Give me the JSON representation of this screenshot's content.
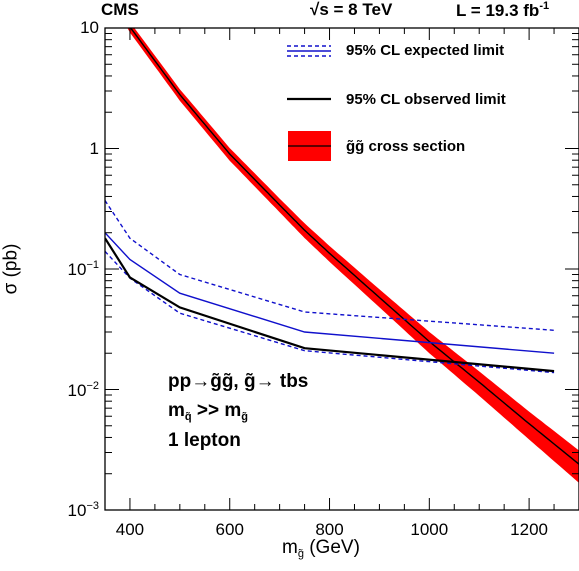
{
  "header": {
    "experiment": "CMS",
    "energy_prefix": "s",
    "energy_value": " = 8 TeV",
    "lumi": "L = 19.3 fb",
    "lumi_sup": "-1"
  },
  "legend": {
    "expected": "95% CL expected limit",
    "observed": "95% CL observed limit",
    "xsec": "g̃g̃ cross section"
  },
  "annotation": {
    "line1": "pp→g̃g̃,  g̃→ tbs",
    "line2_main": "m",
    "line2_sub": "q̃",
    "line2_mid": " >> m",
    "line2_sub2": "g̃",
    "line3": "1 lepton"
  },
  "axes": {
    "xlabel_main": "m",
    "xlabel_sub": "g̃",
    "xlabel_unit": " (GeV)",
    "ylabel": "σ (pb)"
  },
  "colors": {
    "expected": "#1010cc",
    "observed": "#000000",
    "xsec_band": "#ff0000",
    "xsec_line": "#000000"
  },
  "chart_data": {
    "type": "line",
    "xlim": [
      350,
      1300
    ],
    "ylim": [
      0.001,
      10
    ],
    "yscale": "log",
    "grid": false,
    "legend_position": "top-right",
    "x_ticks": [
      400,
      600,
      800,
      1000,
      1200
    ],
    "x_tick_labels": [
      "400",
      "600",
      "800",
      "1000",
      "1200"
    ],
    "y_ticks": [
      0.001,
      0.01,
      0.1,
      1,
      10
    ],
    "y_tick_labels": [
      {
        "base": "10",
        "exp": "−3"
      },
      {
        "base": "10",
        "exp": "−2"
      },
      {
        "base": "10",
        "exp": "−1"
      },
      {
        "base": "1",
        "exp": ""
      },
      {
        "base": "10",
        "exp": ""
      }
    ],
    "series": [
      {
        "key": "xsec",
        "style": "band",
        "x": [
          350,
          400,
          500,
          600,
          700,
          750,
          800,
          900,
          1000,
          1100,
          1200,
          1300
        ],
        "y": [
          23.0,
          10.2,
          2.8,
          0.9,
          0.34,
          0.21,
          0.135,
          0.058,
          0.025,
          0.0115,
          0.0052,
          0.0024
        ],
        "rel_unc_low": [
          0.1,
          0.1,
          0.11,
          0.12,
          0.13,
          0.14,
          0.15,
          0.17,
          0.2,
          0.23,
          0.26,
          0.3
        ],
        "rel_unc_high": [
          0.1,
          0.1,
          0.11,
          0.12,
          0.13,
          0.14,
          0.15,
          0.17,
          0.2,
          0.23,
          0.26,
          0.3
        ]
      },
      {
        "key": "expected",
        "style": "solid",
        "x": [
          350,
          400,
          500,
          750,
          1250
        ],
        "y": [
          0.2,
          0.12,
          0.063,
          0.03,
          0.02
        ]
      },
      {
        "key": "expected_band_up",
        "style": "dashed",
        "x": [
          350,
          400,
          500,
          750,
          1250
        ],
        "y": [
          0.37,
          0.18,
          0.09,
          0.044,
          0.031
        ]
      },
      {
        "key": "expected_band_down",
        "style": "dashed",
        "x": [
          350,
          400,
          500,
          750,
          1250
        ],
        "y": [
          0.14,
          0.084,
          0.043,
          0.021,
          0.0138
        ]
      },
      {
        "key": "observed",
        "style": "solid",
        "x": [
          350,
          400,
          500,
          750,
          1250
        ],
        "y": [
          0.18,
          0.085,
          0.048,
          0.022,
          0.0142
        ]
      }
    ]
  }
}
